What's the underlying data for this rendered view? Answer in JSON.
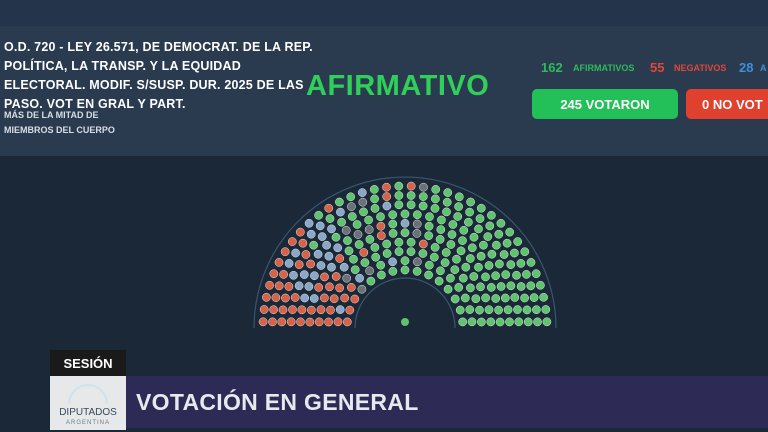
{
  "header": {
    "title": "O.D. 720 - LEY 26.571, DE DEMOCRAT. DE LA REP. POLÍTICA, LA TRANSP. Y LA EQUIDAD ELECTORAL. MODIF. S/SUSP. DUR. 2025 DE LAS PASO. VOT EN GRAL Y PART.",
    "majority_line1": "MÁS DE LA MITAD DE",
    "majority_line2": "MIEMBROS DEL CUERPO",
    "result": "AFIRMATIVO"
  },
  "counts": {
    "afirmativos": "162",
    "afirmativos_label": "AFIRMATIVOS",
    "negativos": "55",
    "negativos_label": "NEGATIVOS",
    "abstenciones": "28",
    "abstenciones_label": "A"
  },
  "buttons": {
    "votaron": "245 VOTARON",
    "no_votaron": "0 NO VOT"
  },
  "hemicycle": {
    "seats": {
      "afirmativo": 162,
      "negativo": 55,
      "abstencion": 28,
      "ausente": 12
    },
    "colors": {
      "afirmativo": "#5fc46e",
      "negativo": "#d8614a",
      "abstencion": "#8aa6c8",
      "ausente": "#6b7178",
      "presidente": "#5fc46e"
    }
  },
  "lower_third": {
    "session_label": "SESIÓN",
    "logo_name": "DIPUTADOS",
    "logo_country": "ARGENTINA",
    "caption": "VOTACIÓN EN GENERAL"
  }
}
